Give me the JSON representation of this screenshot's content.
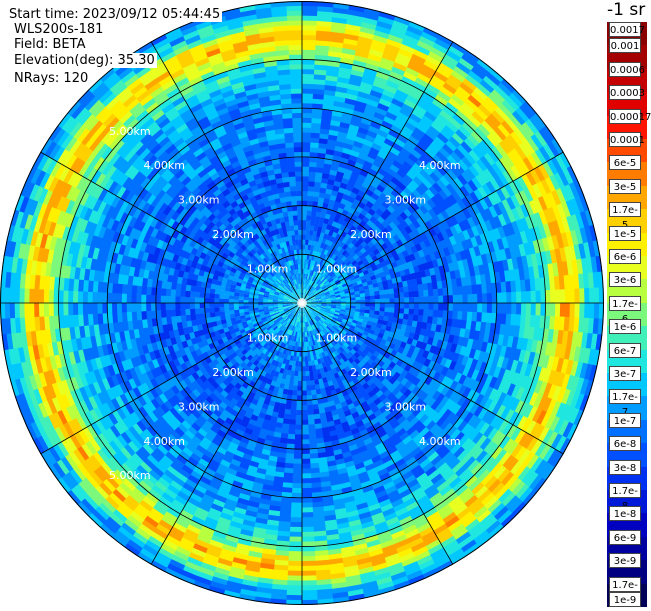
{
  "header": {
    "start_time": "Start time: 2023/09/12 05:44:45",
    "instrument": "WLS200s-181",
    "field": "Field: BETA",
    "elevation": "Elevation(deg): 35.30",
    "nrays": "NRays: 120"
  },
  "colorbar": {
    "unit_label": "-1 sr",
    "labels": [
      "0.0017",
      "0.001",
      "0.0006",
      "0.0003",
      "0.00017",
      "0.0001",
      "6e-5",
      "3e-5",
      "1.7e-5",
      "1e-5",
      "6e-6",
      "3e-6",
      "1.7e-6",
      "1e-6",
      "6e-7",
      "3e-7",
      "1.7e-7",
      "1e-7",
      "6e-8",
      "3e-8",
      "1.7e-8",
      "1e-8",
      "6e-9",
      "3e-9",
      "1.7e-9",
      "1e-9"
    ],
    "colors": [
      "#8b0000",
      "#a40000",
      "#c40000",
      "#e00000",
      "#ff1500",
      "#ff4a00",
      "#ff7c00",
      "#ffa600",
      "#ffd000",
      "#fff000",
      "#e8ff20",
      "#b8ff40",
      "#7cf87c",
      "#40f0b8",
      "#20e6e0",
      "#00c8ff",
      "#009cff",
      "#0070ff",
      "#0050ff",
      "#0030f0",
      "#0018d8",
      "#0000c0",
      "#0000a0",
      "#000080",
      "#000058"
    ]
  },
  "chart_data": {
    "type": "heatmap",
    "title": "",
    "xlabel": "",
    "ylabel": "",
    "field": "BETA",
    "elevation_deg": 35.3,
    "nrays": 120,
    "range_rings_km": [
      1.0,
      2.0,
      3.0,
      4.0,
      5.0
    ],
    "range_labels": [
      "1.00km",
      "2.00km",
      "3.00km",
      "4.00km",
      "5.00km"
    ],
    "max_range_km": 6.2,
    "radial_profile": {
      "range_km": [
        0,
        0.5,
        1.0,
        1.5,
        2.0,
        2.5,
        3.0,
        3.5,
        4.0,
        4.5,
        5.0,
        5.2,
        5.4,
        5.6,
        5.8,
        6.0,
        6.2
      ],
      "beta_sr_inv": [
        3e-07,
        1.7e-07,
        1e-07,
        6e-08,
        6e-08,
        6e-08,
        6e-08,
        1e-07,
        1e-07,
        1.7e-07,
        6e-07,
        3e-06,
        1.7e-05,
        1e-05,
        6e-07,
        1.7e-07,
        1e-07
      ]
    }
  }
}
